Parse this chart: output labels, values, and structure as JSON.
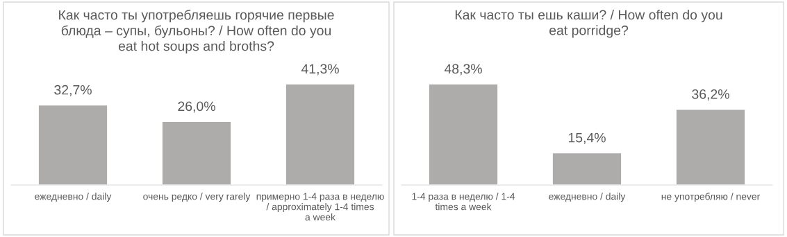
{
  "chart_data": [
    {
      "type": "bar",
      "title": "Как часто ты употребляешь горячие первые блюда – супы, бульоны? / How often do you eat hot soups and broths?",
      "categories": [
        "ежедневно / daily",
        "очень редко / very rarely",
        "примерно 1-4 раза в неделю / approximately 1-4 times a week"
      ],
      "values": [
        32.7,
        26.0,
        41.3
      ],
      "value_labels": [
        "32,7%",
        "26,0%",
        "41,3%"
      ],
      "color": "#aeabab",
      "grid": false,
      "legend": false
    },
    {
      "type": "bar",
      "title": "Как часто ты ешь каши? / How often do you eat porridge?",
      "categories": [
        "1-4 раза в неделю / 1-4 times a week",
        "ежедневно / daily",
        "не употребляю / never"
      ],
      "values": [
        48.3,
        15.4,
        36.2
      ],
      "value_labels": [
        "48,3%",
        "15,4%",
        "36,2%"
      ],
      "color": "#aeabab",
      "grid": false,
      "legend": false
    }
  ]
}
